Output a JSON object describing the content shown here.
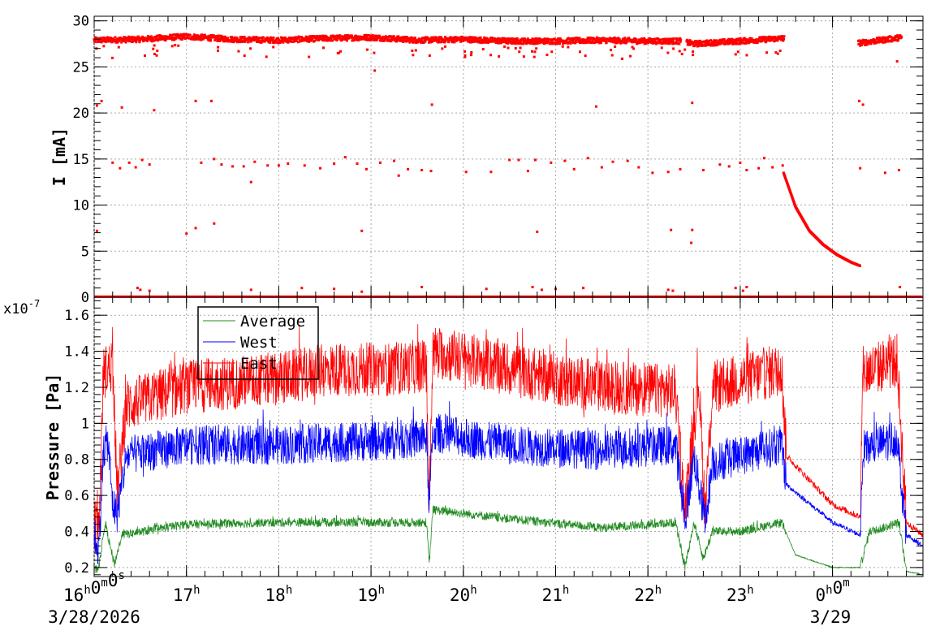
{
  "chart_data": [
    {
      "type": "scatter",
      "ylabel": "I [mA]",
      "ylim": [
        0,
        30.5
      ],
      "yticks": [
        0,
        5,
        10,
        15,
        20,
        25,
        30
      ],
      "ytick_labels": [
        "0",
        "5",
        "10",
        "15",
        "20",
        "25",
        "30"
      ],
      "xlim_hours": [
        16,
        24.98
      ],
      "grid": true,
      "series": [
        {
          "color": "#ff0000",
          "main_band": [
            [
              16.0,
              27.9
            ],
            [
              16.5,
              28.0
            ],
            [
              17.0,
              28.3
            ],
            [
              17.5,
              28.0
            ],
            [
              18.0,
              27.9
            ],
            [
              18.5,
              28.1
            ],
            [
              19.0,
              28.2
            ],
            [
              19.5,
              27.9
            ],
            [
              20.0,
              28.0
            ],
            [
              20.5,
              27.8
            ],
            [
              21.0,
              27.8
            ],
            [
              21.5,
              27.9
            ],
            [
              22.0,
              27.8
            ],
            [
              22.35,
              27.8
            ],
            [
              22.5,
              27.5
            ],
            [
              23.0,
              27.8
            ],
            [
              23.45,
              28.1
            ],
            [
              24.3,
              27.6
            ],
            [
              24.75,
              28.2
            ]
          ],
          "decay_curve": [
            [
              23.47,
              13.5
            ],
            [
              23.6,
              9.8
            ],
            [
              23.75,
              7.2
            ],
            [
              23.9,
              5.7
            ],
            [
              24.05,
              4.6
            ],
            [
              24.2,
              3.8
            ],
            [
              24.3,
              3.4
            ]
          ],
          "outliers": [
            [
              16.03,
              20.8
            ],
            [
              16.08,
              21.3
            ],
            [
              16.3,
              20.6
            ],
            [
              16.65,
              20.3
            ],
            [
              17.1,
              21.3
            ],
            [
              17.27,
              21.3
            ],
            [
              19.04,
              24.6
            ],
            [
              19.66,
              20.9
            ],
            [
              21.44,
              20.7
            ],
            [
              22.48,
              21.1
            ],
            [
              24.33,
              20.9
            ],
            [
              24.29,
              21.3
            ],
            [
              24.7,
              25.6
            ],
            [
              16.2,
              14.6
            ],
            [
              16.28,
              14.0
            ],
            [
              16.38,
              14.6
            ],
            [
              16.45,
              14.1
            ],
            [
              16.52,
              14.9
            ],
            [
              16.6,
              14.4
            ],
            [
              17.16,
              14.6
            ],
            [
              17.3,
              15.0
            ],
            [
              17.38,
              14.4
            ],
            [
              17.5,
              14.2
            ],
            [
              17.62,
              14.2
            ],
            [
              17.7,
              12.5
            ],
            [
              17.74,
              14.7
            ],
            [
              17.88,
              14.3
            ],
            [
              18.0,
              14.3
            ],
            [
              18.1,
              14.5
            ],
            [
              18.28,
              14.3
            ],
            [
              18.45,
              14.0
            ],
            [
              18.6,
              14.5
            ],
            [
              18.72,
              15.2
            ],
            [
              18.85,
              14.5
            ],
            [
              18.95,
              13.9
            ],
            [
              19.1,
              14.6
            ],
            [
              19.25,
              14.8
            ],
            [
              19.3,
              13.2
            ],
            [
              19.4,
              13.9
            ],
            [
              19.55,
              13.8
            ],
            [
              19.65,
              13.7
            ],
            [
              20.03,
              13.6
            ],
            [
              20.3,
              13.6
            ],
            [
              20.5,
              14.9
            ],
            [
              20.6,
              14.9
            ],
            [
              20.7,
              13.7
            ],
            [
              20.78,
              14.9
            ],
            [
              20.95,
              14.6
            ],
            [
              21.1,
              14.8
            ],
            [
              21.2,
              13.9
            ],
            [
              21.35,
              15.1
            ],
            [
              21.5,
              14.1
            ],
            [
              21.62,
              14.7
            ],
            [
              21.78,
              14.8
            ],
            [
              21.9,
              14.1
            ],
            [
              22.05,
              13.5
            ],
            [
              22.22,
              13.6
            ],
            [
              22.35,
              13.9
            ],
            [
              22.6,
              13.8
            ],
            [
              22.78,
              14.4
            ],
            [
              22.88,
              14.2
            ],
            [
              23.0,
              14.6
            ],
            [
              23.07,
              13.8
            ],
            [
              23.2,
              14.0
            ],
            [
              23.26,
              15.1
            ],
            [
              23.35,
              14.1
            ],
            [
              23.46,
              14.3
            ],
            [
              24.3,
              14.0
            ],
            [
              24.57,
              13.5
            ],
            [
              24.72,
              13.8
            ],
            [
              16.03,
              7.2
            ],
            [
              17.0,
              6.9
            ],
            [
              17.1,
              7.5
            ],
            [
              17.3,
              8.0
            ],
            [
              18.9,
              7.2
            ],
            [
              20.8,
              7.1
            ],
            [
              22.25,
              7.3
            ],
            [
              22.48,
              7.3
            ],
            [
              22.47,
              5.9
            ],
            [
              16.47,
              1.0
            ],
            [
              16.5,
              0.8
            ],
            [
              16.6,
              0.7
            ],
            [
              17.7,
              0.8
            ],
            [
              18.25,
              1.0
            ],
            [
              18.6,
              0.9
            ],
            [
              18.9,
              0.6
            ],
            [
              19.55,
              1.1
            ],
            [
              20.25,
              0.9
            ],
            [
              20.75,
              1.1
            ],
            [
              20.85,
              0.8
            ],
            [
              21.0,
              0.9
            ],
            [
              21.3,
              1.0
            ],
            [
              22.22,
              0.8
            ],
            [
              22.27,
              0.7
            ],
            [
              22.95,
              1.0
            ],
            [
              23.03,
              0.7
            ],
            [
              23.07,
              1.1
            ],
            [
              24.73,
              1.1
            ]
          ],
          "baseline": 0.05
        }
      ]
    },
    {
      "type": "line",
      "ylabel": "Pressure [Pa]",
      "exponent_label": "x10-7",
      "ylim": [
        0.15,
        1.7
      ],
      "yticks": [
        0.2,
        0.4,
        0.6,
        0.8,
        1.0,
        1.2,
        1.4,
        1.6
      ],
      "ytick_labels": [
        "0.2",
        "0.4",
        "0.6",
        "0.8",
        "1",
        "1.2",
        "1.4",
        "1.6"
      ],
      "xlim_hours": [
        16,
        24.98
      ],
      "grid": true,
      "legend_position": "top-left",
      "series": [
        {
          "name": "Average",
          "color": "#228b22",
          "profile": [
            [
              16.0,
              0.18
            ],
            [
              16.05,
              0.2
            ],
            [
              16.12,
              0.45
            ],
            [
              16.18,
              0.3
            ],
            [
              16.22,
              0.22
            ],
            [
              16.3,
              0.38
            ],
            [
              17.0,
              0.44
            ],
            [
              18.0,
              0.45
            ],
            [
              19.0,
              0.45
            ],
            [
              19.6,
              0.45
            ],
            [
              19.63,
              0.22
            ],
            [
              19.67,
              0.52
            ],
            [
              20.5,
              0.47
            ],
            [
              21.5,
              0.42
            ],
            [
              22.3,
              0.45
            ],
            [
              22.4,
              0.2
            ],
            [
              22.5,
              0.45
            ],
            [
              22.6,
              0.25
            ],
            [
              22.7,
              0.4
            ],
            [
              23.0,
              0.4
            ],
            [
              23.45,
              0.45
            ],
            [
              23.6,
              0.27
            ],
            [
              24.0,
              0.2
            ],
            [
              24.3,
              0.2
            ],
            [
              24.4,
              0.4
            ],
            [
              24.55,
              0.42
            ],
            [
              24.72,
              0.45
            ],
            [
              24.8,
              0.18
            ],
            [
              24.98,
              0.16
            ]
          ],
          "noise": 0.05
        },
        {
          "name": "West",
          "color": "#0000ff",
          "profile": [
            [
              16.0,
              0.38
            ],
            [
              16.05,
              0.3
            ],
            [
              16.1,
              0.85
            ],
            [
              16.15,
              0.9
            ],
            [
              16.2,
              0.55
            ],
            [
              16.25,
              0.5
            ],
            [
              16.35,
              0.82
            ],
            [
              17.0,
              0.88
            ],
            [
              18.0,
              0.88
            ],
            [
              19.0,
              0.9
            ],
            [
              19.6,
              0.92
            ],
            [
              19.63,
              0.55
            ],
            [
              19.67,
              0.95
            ],
            [
              20.5,
              0.88
            ],
            [
              21.5,
              0.85
            ],
            [
              22.3,
              0.88
            ],
            [
              22.4,
              0.45
            ],
            [
              22.5,
              0.82
            ],
            [
              22.62,
              0.45
            ],
            [
              22.7,
              0.78
            ],
            [
              23.45,
              0.88
            ],
            [
              23.5,
              0.66
            ],
            [
              24.0,
              0.45
            ],
            [
              24.3,
              0.38
            ],
            [
              24.33,
              0.85
            ],
            [
              24.7,
              0.92
            ],
            [
              24.8,
              0.38
            ],
            [
              24.98,
              0.32
            ]
          ],
          "noise": 0.22
        },
        {
          "name": "East",
          "color": "#ff0000",
          "profile": [
            [
              16.0,
              0.45
            ],
            [
              16.05,
              0.4
            ],
            [
              16.1,
              1.28
            ],
            [
              16.2,
              1.32
            ],
            [
              16.25,
              0.6
            ],
            [
              16.35,
              1.1
            ],
            [
              17.0,
              1.2
            ],
            [
              18.0,
              1.25
            ],
            [
              18.6,
              1.3
            ],
            [
              19.2,
              1.3
            ],
            [
              19.6,
              1.32
            ],
            [
              19.63,
              0.55
            ],
            [
              19.67,
              1.4
            ],
            [
              20.5,
              1.3
            ],
            [
              21.5,
              1.2
            ],
            [
              22.3,
              1.18
            ],
            [
              22.4,
              0.5
            ],
            [
              22.55,
              1.25
            ],
            [
              22.62,
              0.5
            ],
            [
              22.7,
              1.2
            ],
            [
              23.45,
              1.3
            ],
            [
              23.5,
              0.82
            ],
            [
              24.0,
              0.55
            ],
            [
              24.3,
              0.48
            ],
            [
              24.33,
              1.28
            ],
            [
              24.7,
              1.35
            ],
            [
              24.8,
              0.45
            ],
            [
              24.98,
              0.38
            ]
          ],
          "noise": 0.3
        }
      ]
    }
  ],
  "x_axis": {
    "tick_hours": [
      16,
      17,
      18,
      19,
      20,
      21,
      22,
      23,
      24
    ],
    "labels": [
      "16h0m0s",
      "17h",
      "18h",
      "19h",
      "20h",
      "21h",
      "22h",
      "23h",
      "0h0m"
    ],
    "date_labels": [
      "3/28/2026",
      "3/29"
    ]
  }
}
